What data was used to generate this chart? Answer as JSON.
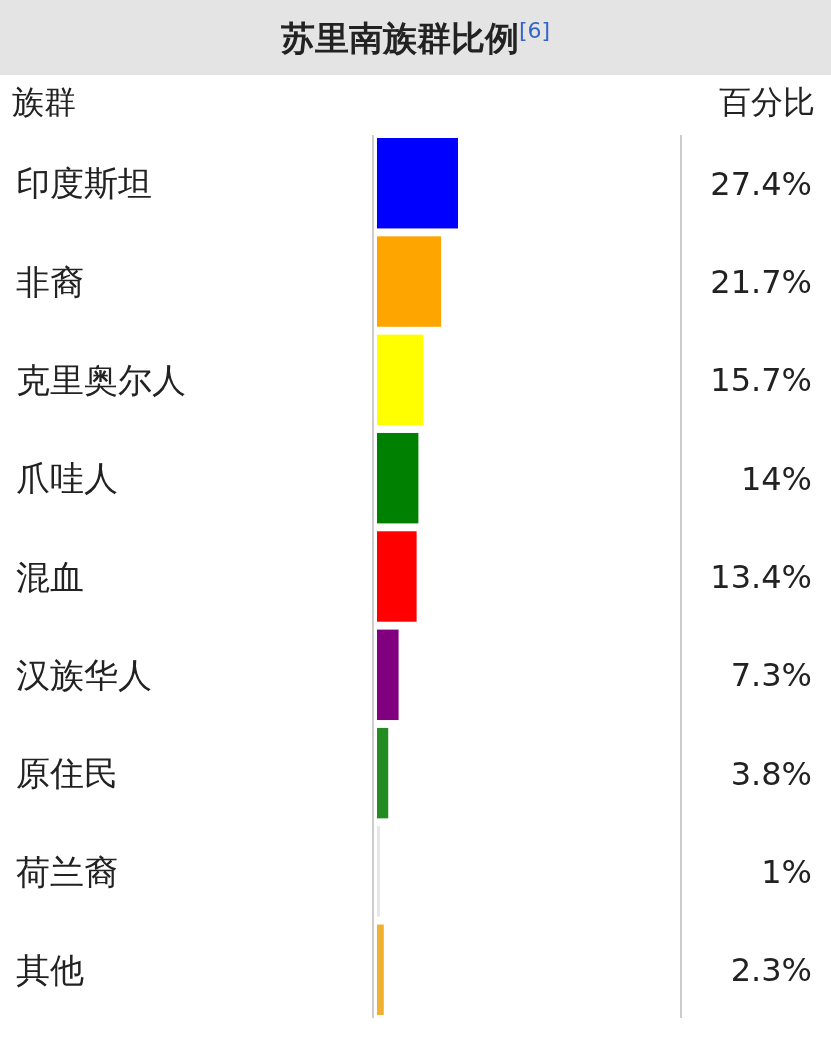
{
  "chart_data": {
    "type": "bar",
    "orientation": "horizontal",
    "title": "苏里南族群比例$^{[6]}$",
    "categories": [
      "印度斯坦",
      "非裔",
      "克里奥尔人",
      "爪哇人",
      "混血",
      "汉族华人",
      "原住民",
      "荷兰裔",
      "其他"
    ],
    "values": [
      27.4,
      21.7,
      15.7,
      14,
      13.4,
      7.3,
      3.8,
      1,
      2.3
    ],
    "colors": [
      "#0000ff",
      "#ffa500",
      "#ffff00",
      "#008000",
      "#ff0000",
      "#800080",
      "#228b22",
      "#e6e6e6",
      "#f0b030"
    ],
    "value_labels": [
      "27.4%",
      "21.7%",
      "15.7%",
      "14%",
      "13.4%",
      "7.3%",
      "3.8%",
      "1%",
      "2.3%"
    ],
    "annotations": [
      "族群",
      "百分比"
    ]
  }
}
